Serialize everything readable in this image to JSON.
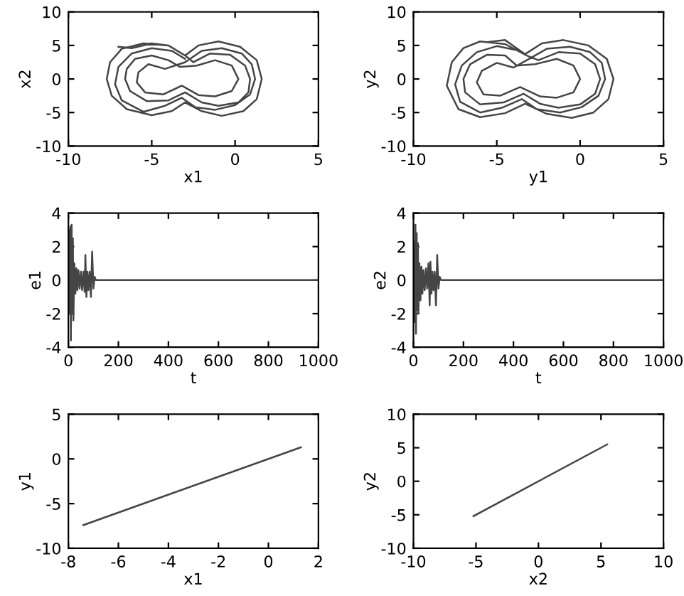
{
  "chart_data": [
    {
      "type": "line",
      "xlabel": "x1",
      "ylabel": "x2",
      "xlim": [
        -10,
        5
      ],
      "ylim": [
        -10,
        10
      ],
      "xticks": [
        -10,
        -5,
        0,
        5
      ],
      "yticks": [
        -10,
        -5,
        0,
        5,
        10
      ],
      "grid": false,
      "series": [
        {
          "color": "#454545",
          "x": [
            -7.0,
            -6.2,
            -5.0,
            -4.0,
            -3.0,
            -2.2,
            -1.0,
            0.3,
            1.3,
            1.6,
            1.3,
            0.5,
            -0.8,
            -2.0,
            -3.0,
            -3.8,
            -5.0,
            -6.5,
            -7.4,
            -7.7,
            -7.5,
            -6.8,
            -5.5,
            -4.0,
            -3.0,
            -2.5,
            -1.5,
            -0.3,
            0.6,
            0.9,
            0.8,
            0.2,
            -1.0,
            -2.0,
            -3.0,
            -4.0,
            -5.3,
            -6.3,
            -6.6,
            -6.5,
            -6.0,
            -5.0,
            -4.0,
            -3.3,
            -2.3,
            -1.2,
            -0.2,
            0.2,
            -0.2,
            -1.2,
            -2.2,
            -3.2,
            -4.3,
            -5.4,
            -5.9,
            -5.8,
            -5.2,
            -4.2,
            -3.0,
            -2.0,
            -0.8,
            0.4,
            1.0,
            1.2,
            0.9,
            0.0,
            -1.2,
            -2.4,
            -3.2,
            -4.2,
            -5.5,
            -6.8,
            -7.2,
            -7.0,
            -6.2,
            -5.0,
            -3.8,
            -3.0
          ],
          "values": [
            4.8,
            4.6,
            5.3,
            5.0,
            3.5,
            5.0,
            5.6,
            4.8,
            2.8,
            0.0,
            -3.0,
            -4.8,
            -5.5,
            -4.8,
            -3.5,
            -4.8,
            -5.4,
            -4.5,
            -2.5,
            0.0,
            2.5,
            4.5,
            5.3,
            5.0,
            3.5,
            2.5,
            3.8,
            3.6,
            2.0,
            0.0,
            -2.0,
            -3.5,
            -4.0,
            -3.5,
            -2.0,
            -3.2,
            -3.3,
            -1.8,
            0.0,
            1.5,
            3.0,
            3.5,
            2.8,
            1.8,
            2.0,
            2.8,
            2.0,
            0.0,
            -1.8,
            -2.6,
            -2.4,
            -1.0,
            -2.3,
            -2.0,
            -0.5,
            1.0,
            2.2,
            1.5,
            2.5,
            4.2,
            4.6,
            3.8,
            2.2,
            0.0,
            -2.3,
            -3.9,
            -4.6,
            -4.2,
            -2.8,
            -4.0,
            -4.9,
            -3.2,
            -0.8,
            1.8,
            3.8,
            4.6,
            4.2,
            3.0
          ]
        }
      ]
    },
    {
      "type": "line",
      "xlabel": "y1",
      "ylabel": "y2",
      "xlim": [
        -10,
        5
      ],
      "ylim": [
        -10,
        10
      ],
      "xticks": [
        -10,
        -5,
        0,
        5
      ],
      "yticks": [
        -10,
        -5,
        0,
        5,
        10
      ],
      "grid": false,
      "series": [
        {
          "color": "#454545",
          "x": [
            -5.6,
            -4.5,
            -3.3,
            -2.3,
            -1.0,
            0.5,
            1.6,
            2.0,
            1.7,
            0.8,
            -0.5,
            -2.0,
            -3.3,
            -4.5,
            -6.0,
            -7.3,
            -8.0,
            -7.7,
            -7.0,
            -6.0,
            -4.5,
            -3.2,
            -2.5,
            -1.3,
            0.0,
            0.9,
            1.2,
            0.9,
            0.0,
            -1.3,
            -2.4,
            -3.4,
            -4.6,
            -6.0,
            -6.9,
            -7.0,
            -6.6,
            -5.6,
            -4.5,
            -3.8,
            -2.7,
            -1.4,
            -0.4,
            0.0,
            -0.4,
            -1.4,
            -2.4,
            -3.6,
            -4.8,
            -5.8,
            -6.2,
            -5.9,
            -5.0,
            -4.0,
            -3.2,
            -2.0,
            -0.6,
            0.6,
            1.3,
            1.5,
            1.1,
            0.1,
            -1.2,
            -2.6,
            -3.5,
            -4.7,
            -6.0,
            -7.2,
            -7.5,
            -7.1,
            -6.2,
            -5.0,
            -3.8
          ],
          "values": [
            5.5,
            5.8,
            3.7,
            5.3,
            5.8,
            5.0,
            3.0,
            0.0,
            -3.0,
            -5.0,
            -5.8,
            -5.2,
            -3.7,
            -5.1,
            -5.7,
            -4.5,
            -1.0,
            2.5,
            4.6,
            5.6,
            5.2,
            3.5,
            2.8,
            4.0,
            3.8,
            2.2,
            0.0,
            -2.2,
            -3.8,
            -4.3,
            -3.7,
            -2.2,
            -3.5,
            -3.8,
            -2.0,
            0.0,
            2.2,
            3.6,
            3.5,
            2.0,
            2.2,
            3.0,
            2.0,
            0.0,
            -2.0,
            -2.8,
            -2.6,
            -1.2,
            -2.5,
            -2.3,
            -0.5,
            1.2,
            2.4,
            1.7,
            2.8,
            4.5,
            4.8,
            4.0,
            2.4,
            0.0,
            -2.5,
            -4.2,
            -5.0,
            -4.5,
            -3.0,
            -4.3,
            -5.0,
            -3.4,
            -0.8,
            2.0,
            4.0,
            4.9,
            4.3
          ]
        }
      ]
    },
    {
      "type": "line",
      "xlabel": "t",
      "ylabel": "e1",
      "xlim": [
        0,
        1000
      ],
      "ylim": [
        -4,
        4
      ],
      "xticks": [
        0,
        200,
        400,
        600,
        800,
        1000
      ],
      "yticks": [
        -4,
        -2,
        0,
        2,
        4
      ],
      "grid": false,
      "series": [
        {
          "color": "#454545",
          "x": [
            0,
            3,
            5,
            8,
            10,
            13,
            15,
            18,
            20,
            24,
            28,
            32,
            36,
            40,
            45,
            50,
            55,
            60,
            65,
            68,
            72,
            76,
            80,
            85,
            90,
            95,
            100,
            105,
            110,
            1000
          ],
          "values": [
            0,
            3.0,
            -2.0,
            3.2,
            -3.6,
            3.3,
            -2.0,
            2.5,
            -2.4,
            1.0,
            -0.8,
            0.7,
            -0.6,
            0.6,
            -0.5,
            0.5,
            -0.6,
            0.5,
            -0.7,
            1.5,
            -1.0,
            0.5,
            -0.6,
            0.5,
            -1.0,
            1.7,
            -0.5,
            0.2,
            0,
            0
          ]
        }
      ]
    },
    {
      "type": "line",
      "xlabel": "t",
      "ylabel": "e2",
      "xlim": [
        0,
        1000
      ],
      "ylim": [
        -4,
        4
      ],
      "xticks": [
        0,
        200,
        400,
        600,
        800,
        1000
      ],
      "yticks": [
        -4,
        -2,
        0,
        2,
        4
      ],
      "grid": false,
      "series": [
        {
          "color": "#454545",
          "x": [
            0,
            3,
            5,
            8,
            10,
            13,
            15,
            18,
            20,
            24,
            28,
            32,
            36,
            40,
            45,
            50,
            55,
            60,
            65,
            68,
            72,
            76,
            80,
            85,
            90,
            95,
            100,
            105,
            110,
            1000
          ],
          "values": [
            0,
            2.3,
            -2.5,
            3.3,
            -3.2,
            2.8,
            -1.8,
            2.2,
            -2.0,
            1.0,
            -1.2,
            0.8,
            -0.8,
            0.6,
            -0.6,
            0.7,
            -0.5,
            1.0,
            -1.5,
            1.1,
            -0.8,
            0.5,
            -0.6,
            0.5,
            -1.5,
            1.5,
            -0.5,
            0.2,
            0,
            0
          ]
        }
      ]
    },
    {
      "type": "line",
      "xlabel": "x1",
      "ylabel": "y1",
      "xlim": [
        -8,
        2
      ],
      "ylim": [
        -10,
        5
      ],
      "xticks": [
        -8,
        -6,
        -4,
        -2,
        0,
        2
      ],
      "yticks": [
        -10,
        -5,
        0,
        5
      ],
      "grid": false,
      "series": [
        {
          "color": "#454545",
          "x": [
            -7.4,
            1.3
          ],
          "values": [
            -7.4,
            1.3
          ]
        }
      ]
    },
    {
      "type": "line",
      "xlabel": "x2",
      "ylabel": "y2",
      "xlim": [
        -10,
        10
      ],
      "ylim": [
        -10,
        10
      ],
      "xticks": [
        -10,
        -5,
        0,
        5,
        10
      ],
      "yticks": [
        -10,
        -5,
        0,
        5,
        10
      ],
      "grid": false,
      "series": [
        {
          "color": "#454545",
          "x": [
            -5.2,
            5.5
          ],
          "values": [
            -5.2,
            5.5
          ]
        }
      ]
    }
  ]
}
